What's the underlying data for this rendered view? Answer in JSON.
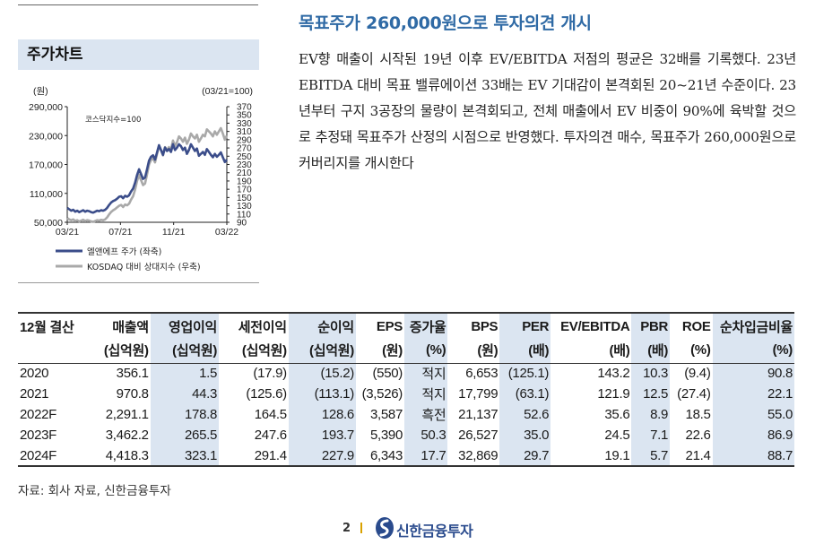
{
  "top_cut_text": "",
  "headline": "목표주가 260,000원으로 투자의견 개시",
  "paragraph": "EV향 매출이 시작된 19년 이후 EV/EBITDA 저점의 평균은 32배를 기록했다. 23년 EBITDA 대비 목표 밸류에이션 33배는 EV 기대감이 본격회된 20~21년 수준이다. 23년부터 구지 3공장의 물량이 본격회되고, 전체 매출에서 EV 비중이 90%에 육박할 것으로 추정돼 목표주가 산정의 시점으로 반영했다. 투자의견 매수, 목표주가 260,000원으로 커버리지를 개시한다",
  "chart_box": {
    "title": "주가차트",
    "unit_left": "(원)",
    "unit_right": "(03/21=100)",
    "annotation": "코스닥지수=100",
    "legend": [
      "엘앤에프 주가 (좌축)",
      "KOSDAQ 대비 상대지수 (우축)"
    ]
  },
  "chart_data": {
    "type": "line",
    "x_ticks": [
      "03/21",
      "07/21",
      "11/21",
      "03/22"
    ],
    "y_left_ticks": [
      "290,000",
      "230,000",
      "170,000",
      "110,000",
      "50,000"
    ],
    "y_left_range": [
      50000,
      290000
    ],
    "y_right_ticks": [
      "370",
      "350",
      "330",
      "310",
      "290",
      "270",
      "250",
      "230",
      "210",
      "190",
      "170",
      "150",
      "130",
      "110",
      "90"
    ],
    "y_right_range": [
      90,
      370
    ],
    "series": [
      {
        "name": "엘앤에프 주가 (좌축)",
        "color": "#3b4d8a",
        "axis": "left",
        "values": [
          80000,
          77000,
          74000,
          76000,
          72000,
          74000,
          71000,
          73000,
          75000,
          72000,
          74000,
          73000,
          71000,
          70000,
          72000,
          74000,
          73000,
          75000,
          74000,
          76000,
          80000,
          86000,
          91000,
          94000,
          96000,
          99000,
          103000,
          104000,
          100000,
          105000,
          103000,
          106000,
          114000,
          120000,
          132000,
          148000,
          160000,
          150000,
          140000,
          143000,
          160000,
          178000,
          186000,
          189000,
          180000,
          195000,
          210000,
          200000,
          190000,
          205000,
          198000,
          202000,
          196000,
          212000,
          200000,
          205000,
          212000,
          208000,
          200000,
          205000,
          192000,
          200000,
          212000,
          205000,
          198000,
          203000,
          188000,
          192000,
          196000,
          190000,
          202000,
          196000,
          190000,
          185000,
          192000,
          186000,
          190000,
          195000,
          185000,
          175000,
          180000
        ]
      },
      {
        "name": "KOSDAQ 대비 상대지수 (우축)",
        "color": "#a9a9a9",
        "axis": "right",
        "values": [
          100,
          97,
          95,
          97,
          93,
          95,
          92,
          94,
          96,
          93,
          95,
          94,
          92,
          91,
          93,
          95,
          94,
          96,
          95,
          97,
          102,
          109,
          115,
          119,
          122,
          126,
          130,
          132,
          127,
          133,
          131,
          135,
          145,
          153,
          169,
          190,
          205,
          192,
          180,
          184,
          206,
          230,
          241,
          245,
          235,
          255,
          275,
          265,
          252,
          272,
          265,
          272,
          266,
          288,
          275,
          284,
          298,
          293,
          285,
          295,
          280,
          290,
          305,
          298,
          293,
          302,
          285,
          293,
          302,
          298,
          315,
          310,
          305,
          298,
          310,
          302,
          310,
          318,
          305,
          290,
          300
        ]
      }
    ]
  },
  "table": {
    "headers": [
      [
        "12월 결산",
        ""
      ],
      [
        "매출액",
        "(십억원)"
      ],
      [
        "영업이익",
        "(십억원)"
      ],
      [
        "세전이익",
        "(십억원)"
      ],
      [
        "순이익",
        "(십억원)"
      ],
      [
        "EPS",
        "(원)"
      ],
      [
        "증가율",
        "(%)"
      ],
      [
        "BPS",
        "(원)"
      ],
      [
        "PER",
        "(배)"
      ],
      [
        "EV/EBITDA",
        "(배)"
      ],
      [
        "PBR",
        "(배)"
      ],
      [
        "ROE",
        "(%)"
      ],
      [
        "순차입금비율",
        "(%)"
      ]
    ],
    "rows": [
      [
        "2020",
        "356.1",
        "1.5",
        "(17.9)",
        "(15.2)",
        "(550)",
        "적지",
        "6,653",
        "(125.1)",
        "143.2",
        "10.3",
        "(9.4)",
        "90.8"
      ],
      [
        "2021",
        "970.8",
        "44.3",
        "(125.6)",
        "(113.1)",
        "(3,526)",
        "적지",
        "17,799",
        "(63.1)",
        "121.9",
        "12.5",
        "(27.4)",
        "22.1"
      ],
      [
        "2022F",
        "2,291.1",
        "178.8",
        "164.5",
        "128.6",
        "3,587",
        "흑전",
        "21,137",
        "52.6",
        "35.6",
        "8.9",
        "18.5",
        "55.0"
      ],
      [
        "2023F",
        "3,462.2",
        "265.5",
        "247.6",
        "193.7",
        "5,390",
        "50.3",
        "26,527",
        "35.0",
        "24.5",
        "7.1",
        "22.6",
        "86.9"
      ],
      [
        "2024F",
        "4,418.3",
        "323.1",
        "291.4",
        "227.9",
        "6,343",
        "17.7",
        "32,869",
        "29.7",
        "19.1",
        "5.7",
        "21.4",
        "88.7"
      ]
    ]
  },
  "source": "자료: 회사 자료, 신한금융투자",
  "footer": {
    "page": "2",
    "brand": "신한금융투자",
    "logo_icon": "shinhan-logo-icon"
  }
}
